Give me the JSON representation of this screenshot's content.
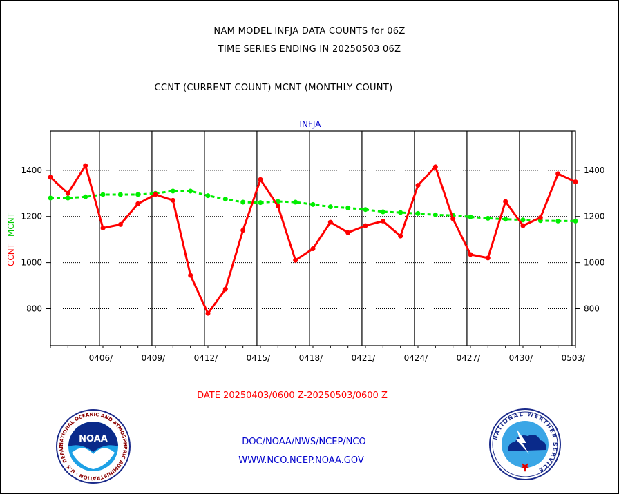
{
  "header": {
    "title_line1": "NAM MODEL INFJA DATA COUNTS for 06Z",
    "title_line2": "TIME SERIES ENDING IN 20250503 06Z",
    "subtitle": "CCNT (CURRENT COUNT) MCNT (MONTHLY COUNT)"
  },
  "footer": {
    "date_range": "DATE 20250403/0600 Z-20250503/0600 Z",
    "org_path": "DOC/NOAA/NWS/NCEP/NCO",
    "website": "WWW.NCO.NCEP.NOAA.GOV",
    "noaa_logo_text": "NOAA",
    "noaa_ring_text": "NATIONAL OCEANIC AND ATMOSPHERIC ADMINISTRATION · U.S. DEPARTMENT OF COMMERCE",
    "nws_ring_text": "NATIONAL WEATHER SERVICE"
  },
  "chart_data": {
    "type": "line",
    "title": "INFJA",
    "ylabel_ccnt": "CCNT",
    "ylabel_mcnt": "MCNT",
    "ylim": [
      640,
      1570
    ],
    "xlim": [
      0,
      30
    ],
    "y_ticks": [
      800,
      1000,
      1200,
      1400
    ],
    "x_ticks": [
      {
        "x": 2.8,
        "label": "0406/"
      },
      {
        "x": 5.8,
        "label": "0409/"
      },
      {
        "x": 8.8,
        "label": "0412/"
      },
      {
        "x": 11.8,
        "label": "0415/"
      },
      {
        "x": 14.8,
        "label": "0418/"
      },
      {
        "x": 17.8,
        "label": "0421/"
      },
      {
        "x": 20.8,
        "label": "0424/"
      },
      {
        "x": 23.8,
        "label": "0427/"
      },
      {
        "x": 26.8,
        "label": "0430/"
      },
      {
        "x": 29.8,
        "label": "0503/"
      }
    ],
    "grid": true,
    "series": [
      {
        "name": "CCNT",
        "color": "#ff0000",
        "style": "solid",
        "x": [
          0,
          1,
          2,
          3,
          4,
          5,
          6,
          7,
          8,
          9,
          10,
          11,
          12,
          13,
          14,
          15,
          16,
          17,
          18,
          19,
          20,
          21,
          22,
          23,
          24,
          25,
          26,
          27,
          28,
          29,
          30
        ],
        "values": [
          1370,
          1300,
          1420,
          1150,
          1165,
          1255,
          1295,
          1270,
          945,
          780,
          885,
          1140,
          1360,
          1245,
          1010,
          1060,
          1175,
          1130,
          1160,
          1180,
          1115,
          1335,
          1415,
          1190,
          1035,
          1020,
          1265,
          1160,
          1195,
          1385,
          1350
        ]
      },
      {
        "name": "MCNT",
        "color": "#00ee00",
        "style": "dashed",
        "x": [
          0,
          1,
          2,
          3,
          4,
          5,
          6,
          7,
          8,
          9,
          10,
          11,
          12,
          13,
          14,
          15,
          16,
          17,
          18,
          19,
          20,
          21,
          22,
          23,
          24,
          25,
          26,
          27,
          28,
          29,
          30
        ],
        "values": [
          1280,
          1280,
          1285,
          1295,
          1295,
          1295,
          1300,
          1310,
          1310,
          1290,
          1275,
          1262,
          1260,
          1265,
          1262,
          1252,
          1242,
          1237,
          1230,
          1220,
          1217,
          1213,
          1207,
          1205,
          1198,
          1192,
          1188,
          1185,
          1182,
          1180,
          1180
        ]
      }
    ]
  }
}
